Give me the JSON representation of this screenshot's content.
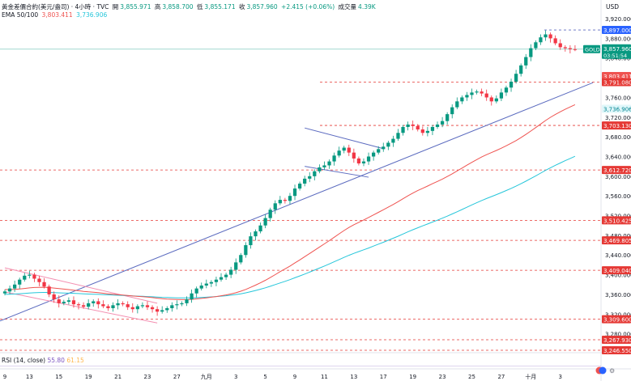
{
  "header": {
    "symbol_line": "黃金差價合約(美元/盎司) · 4小時 · TVC",
    "open_label": "開",
    "open_value": "3,855.971",
    "high_label": "高",
    "high_value": "3,858.700",
    "low_label": "低",
    "low_value": "3,855.171",
    "close_label": "收",
    "close_value": "3,857.960",
    "change_value": "+2.415 (+0.06%)",
    "volume_label": "成交量",
    "volume_value": "4.39K",
    "ema_label": "EMA 50/100",
    "ema50_value": "3,803.411",
    "ema100_value": "3,736.906"
  },
  "currency": "USD",
  "rsi": {
    "label": "RSI (14, close)",
    "value": "55.80",
    "ma_value": "61.15"
  },
  "colors": {
    "up": "#089981",
    "down": "#f23645",
    "ema50": "#ef5350",
    "ema100": "#26c6da",
    "trendline": "#5b6bbf",
    "channel": "#f48fb1",
    "level": "#e53935",
    "price": "#089981",
    "wedge": "#5c6bc0"
  },
  "chart_data": {
    "type": "candlestick",
    "title": "黃金差價合約(美元/盎司) · 4小時 · TVC",
    "ylim": [
      3240,
      3925
    ],
    "y_axis_ticks": [
      3280,
      3320,
      3360,
      3400,
      3440,
      3480,
      3520,
      3560,
      3600,
      3640,
      3680,
      3720,
      3760,
      3800,
      3840,
      3880,
      3920
    ],
    "y_axis_tick_labels": [
      "3,280.000",
      "3,320.000",
      "3,360.000",
      "3,400.000",
      "3,440.000",
      "3,480.000",
      "3,520.000",
      "3,560.000",
      "3,600.000",
      "3,640.000",
      "3,680.000",
      "3,720.000",
      "3,760.000",
      "3,800.000",
      "3,840.000",
      "3,880.000",
      "3,920.000"
    ],
    "x_axis_labels": [
      "9",
      "13",
      "15",
      "19",
      "21",
      "23",
      "27",
      "九月",
      "3",
      "5",
      "9",
      "11",
      "13",
      "17",
      "19",
      "23",
      "25",
      "27",
      "十月",
      "3"
    ],
    "x_axis_label_index": [
      0,
      5,
      11,
      17,
      23,
      29,
      35,
      41,
      47,
      53,
      59,
      65,
      71,
      77,
      83,
      89,
      95,
      101,
      107,
      113
    ],
    "bars": 117,
    "close_path": [
      3366,
      3372,
      3380,
      3390,
      3398,
      3400,
      3392,
      3385,
      3376,
      3360,
      3350,
      3342,
      3345,
      3348,
      3340,
      3338,
      3335,
      3342,
      3346,
      3340,
      3336,
      3332,
      3338,
      3342,
      3340,
      3334,
      3330,
      3336,
      3338,
      3334,
      3330,
      3325,
      3328,
      3332,
      3338,
      3340,
      3342,
      3350,
      3362,
      3372,
      3378,
      3382,
      3385,
      3390,
      3395,
      3400,
      3410,
      3425,
      3440,
      3460,
      3478,
      3488,
      3500,
      3515,
      3532,
      3545,
      3552,
      3550,
      3560,
      3575,
      3585,
      3595,
      3600,
      3610,
      3618,
      3622,
      3630,
      3642,
      3652,
      3658,
      3648,
      3636,
      3626,
      3630,
      3640,
      3648,
      3655,
      3660,
      3668,
      3676,
      3688,
      3700,
      3705,
      3702,
      3695,
      3688,
      3692,
      3700,
      3705,
      3712,
      3726,
      3740,
      3752,
      3760,
      3765,
      3770,
      3772,
      3768,
      3760,
      3752,
      3758,
      3770,
      3780,
      3792,
      3808,
      3825,
      3842,
      3860,
      3872,
      3882,
      3888,
      3880,
      3870,
      3862,
      3860,
      3858,
      3857.96
    ],
    "ema50": {
      "name": "EMA 50",
      "last": 3803.411
    },
    "ema100": {
      "name": "EMA 100",
      "last": 3736.906
    },
    "price_labels": [
      {
        "value": 3897.0,
        "text": "3,897.000",
        "style": "level-blue"
      },
      {
        "value": 3857.96,
        "text": "3,857.960",
        "symbol": "GOLD",
        "countdown": "03:51:54",
        "style": "price"
      },
      {
        "value": 3803.411,
        "text": "3,803.411",
        "style": "ema50"
      },
      {
        "value": 3791.08,
        "text": "3,791.080",
        "style": "level"
      },
      {
        "value": 3736.906,
        "text": "3,736.906",
        "style": "ema100"
      },
      {
        "value": 3703.13,
        "text": "3,703.130",
        "style": "level"
      },
      {
        "value": 3612.72,
        "text": "3,612.720",
        "style": "level"
      },
      {
        "value": 3510.425,
        "text": "3,510.425",
        "style": "level"
      },
      {
        "value": 3469.805,
        "text": "3,469.805",
        "style": "level"
      },
      {
        "value": 3409.04,
        "text": "3,409.040",
        "style": "level"
      },
      {
        "value": 3309.6,
        "text": "3,309.600",
        "style": "level"
      },
      {
        "value": 3267.93,
        "text": "3,267.930",
        "style": "level"
      },
      {
        "value": 3246.55,
        "text": "3,246.550",
        "style": "level"
      }
    ],
    "horizontal_levels": [
      3897.0,
      3791.08,
      3703.13,
      3612.72,
      3510.425,
      3469.805,
      3409.04,
      3309.6,
      3267.93,
      3246.55
    ],
    "grid": true,
    "legend": "top-left"
  }
}
